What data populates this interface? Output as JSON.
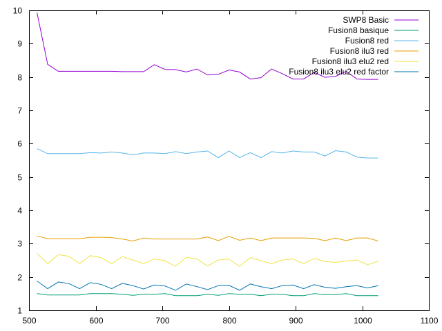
{
  "chart_data": {
    "type": "line",
    "title": "",
    "xlabel": "",
    "ylabel": "",
    "xlim": [
      500,
      1100
    ],
    "ylim": [
      1,
      10
    ],
    "xticks": [
      500,
      600,
      700,
      800,
      900,
      1000,
      1100
    ],
    "yticks": [
      1,
      2,
      3,
      4,
      5,
      6,
      7,
      8,
      9,
      10
    ],
    "grid": false,
    "legend_position": "top-right",
    "x": [
      512,
      528,
      544,
      560,
      576,
      592,
      608,
      624,
      640,
      656,
      672,
      688,
      704,
      720,
      736,
      752,
      768,
      784,
      800,
      816,
      832,
      848,
      864,
      880,
      896,
      912,
      928,
      944,
      960,
      976,
      992,
      1008,
      1024
    ],
    "series": [
      {
        "name": "SWP8 Basic",
        "color": "#9400d3",
        "values": [
          9.93,
          8.38,
          8.17,
          8.17,
          8.17,
          8.17,
          8.17,
          8.17,
          8.16,
          8.16,
          8.16,
          8.37,
          8.23,
          8.22,
          8.15,
          8.24,
          8.06,
          8.08,
          8.21,
          8.15,
          7.94,
          7.98,
          8.24,
          8.1,
          7.94,
          7.94,
          8.14,
          7.99,
          8.02,
          8.17,
          7.94,
          7.93,
          7.93
        ]
      },
      {
        "name": "Fusion8 basique",
        "color": "#009e73",
        "values": [
          1.5,
          1.46,
          1.46,
          1.46,
          1.46,
          1.5,
          1.5,
          1.5,
          1.48,
          1.45,
          1.48,
          1.48,
          1.5,
          1.44,
          1.44,
          1.44,
          1.48,
          1.45,
          1.5,
          1.48,
          1.48,
          1.44,
          1.48,
          1.48,
          1.44,
          1.44,
          1.5,
          1.47,
          1.47,
          1.5,
          1.44,
          1.44,
          1.44
        ]
      },
      {
        "name": "Fusion8 red",
        "color": "#56b4e9",
        "values": [
          5.85,
          5.7,
          5.7,
          5.7,
          5.7,
          5.73,
          5.72,
          5.75,
          5.72,
          5.66,
          5.72,
          5.72,
          5.7,
          5.76,
          5.7,
          5.75,
          5.78,
          5.58,
          5.78,
          5.58,
          5.73,
          5.58,
          5.76,
          5.72,
          5.78,
          5.75,
          5.75,
          5.63,
          5.79,
          5.75,
          5.6,
          5.57,
          5.57
        ]
      },
      {
        "name": "Fusion8 ilu3 red",
        "color": "#e69f00",
        "values": [
          3.23,
          3.15,
          3.15,
          3.15,
          3.15,
          3.19,
          3.19,
          3.18,
          3.14,
          3.08,
          3.17,
          3.14,
          3.14,
          3.14,
          3.14,
          3.14,
          3.2,
          3.09,
          3.22,
          3.1,
          3.17,
          3.09,
          3.17,
          3.17,
          3.17,
          3.17,
          3.16,
          3.09,
          3.17,
          3.09,
          3.17,
          3.17,
          3.08
        ]
      },
      {
        "name": "Fusion8 ilu3  elu2 red",
        "color": "#f0e442",
        "values": [
          2.7,
          2.4,
          2.67,
          2.62,
          2.4,
          2.64,
          2.58,
          2.4,
          2.61,
          2.51,
          2.4,
          2.54,
          2.49,
          2.32,
          2.59,
          2.54,
          2.33,
          2.51,
          2.54,
          2.32,
          2.58,
          2.49,
          2.4,
          2.51,
          2.54,
          2.4,
          2.56,
          2.46,
          2.44,
          2.48,
          2.51,
          2.37,
          2.47
        ]
      },
      {
        "name": "Fusion8 ilu3 elu2 red factor",
        "color": "#0072b2",
        "values": [
          1.88,
          1.65,
          1.85,
          1.8,
          1.65,
          1.83,
          1.78,
          1.65,
          1.81,
          1.74,
          1.64,
          1.76,
          1.73,
          1.6,
          1.79,
          1.71,
          1.62,
          1.74,
          1.75,
          1.6,
          1.79,
          1.71,
          1.65,
          1.74,
          1.76,
          1.65,
          1.77,
          1.69,
          1.66,
          1.71,
          1.74,
          1.67,
          1.74
        ]
      }
    ]
  }
}
